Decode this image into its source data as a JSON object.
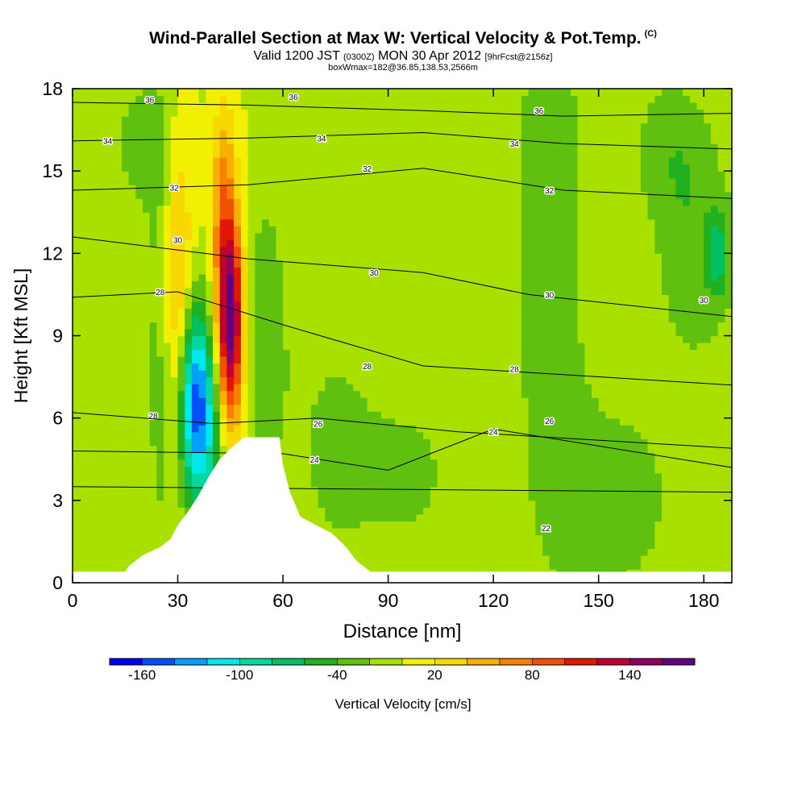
{
  "title": {
    "main": "Wind-Parallel Section at Max W: Vertical Velocity & Pot.Temp.",
    "mark": "(C)",
    "sub_valid": "Valid 1200 JST",
    "sub_utc": "(0300Z)",
    "sub_date": "MON 30 Apr 2012",
    "sub_fcst": "[9hrFcst@2156z]",
    "note": "boxWmax=182@36.85,138.53,2566m"
  },
  "chart_data": {
    "type": "heatmap",
    "xlabel": "Distance [nm]",
    "ylabel": "Height [Kft MSL]",
    "xlim": [
      0,
      188
    ],
    "ylim": [
      0,
      18
    ],
    "x_ticks": [
      0,
      30,
      60,
      90,
      120,
      150,
      180
    ],
    "y_ticks": [
      0,
      3,
      6,
      9,
      12,
      15,
      18
    ],
    "colorbar": {
      "title": "Vertical Velocity [cm/s]",
      "levels": [
        -180,
        -160,
        -140,
        -120,
        -100,
        -80,
        -60,
        -40,
        -20,
        0,
        20,
        40,
        60,
        80,
        100,
        120,
        140,
        160,
        180
      ],
      "tick_labels": [
        -160,
        -100,
        -40,
        20,
        80,
        140
      ],
      "colors": [
        "#0000f0",
        "#0050ff",
        "#00a0ff",
        "#00e8e8",
        "#00d8a0",
        "#00c060",
        "#20b020",
        "#60c010",
        "#a8e000",
        "#f0f000",
        "#f8d800",
        "#f8b000",
        "#f88000",
        "#f05000",
        "#e01800",
        "#c00030",
        "#900060",
        "#600080"
      ]
    },
    "background_level": 0,
    "velocity_features": [
      {
        "x": 35,
        "y": 6.5,
        "sx": 3.2,
        "sy": 2.6,
        "value": -150
      },
      {
        "x": 45,
        "y": 9.5,
        "sx": 2.6,
        "sy": 2.6,
        "value": 175
      },
      {
        "x": 30,
        "y": 11,
        "sx": 3,
        "sy": 4,
        "value": 55
      },
      {
        "x": 43,
        "y": 14,
        "sx": 2.5,
        "sy": 2.5,
        "value": 60
      },
      {
        "x": 40,
        "y": 5,
        "sx": 2.5,
        "sy": 2.5,
        "value": -50
      },
      {
        "x": 55,
        "y": 9,
        "sx": 5,
        "sy": 4,
        "value": -35
      },
      {
        "x": 25,
        "y": 8,
        "sx": 3,
        "sy": 6,
        "value": -30
      },
      {
        "x": 136,
        "y": 13,
        "sx": 8,
        "sy": 8,
        "value": -35
      },
      {
        "x": 178,
        "y": 12,
        "sx": 9,
        "sy": 3,
        "value": -35
      },
      {
        "x": 184,
        "y": 12,
        "sx": 2,
        "sy": 1,
        "value": -55
      },
      {
        "x": 155,
        "y": 3,
        "sx": 14,
        "sy": 3,
        "value": -30
      },
      {
        "x": 95,
        "y": 4,
        "sx": 10,
        "sy": 2,
        "value": -28
      },
      {
        "x": 75,
        "y": 5,
        "sx": 8,
        "sy": 3,
        "value": -28
      },
      {
        "x": 20,
        "y": 16,
        "sx": 8,
        "sy": 2,
        "value": -28
      },
      {
        "x": 170,
        "y": 16,
        "sx": 8,
        "sy": 2,
        "value": -28
      }
    ],
    "terrain": [
      [
        0,
        0.4
      ],
      [
        15,
        0.4
      ],
      [
        16,
        0.6
      ],
      [
        18,
        0.8
      ],
      [
        20,
        1.0
      ],
      [
        25,
        1.3
      ],
      [
        28,
        1.6
      ],
      [
        30,
        2.1
      ],
      [
        33,
        2.6
      ],
      [
        36,
        3.2
      ],
      [
        39,
        3.9
      ],
      [
        42,
        4.5
      ],
      [
        46,
        5.0
      ],
      [
        49,
        5.3
      ],
      [
        59,
        5.3
      ],
      [
        60,
        4.3
      ],
      [
        62,
        3.3
      ],
      [
        65,
        2.4
      ],
      [
        68,
        2.2
      ],
      [
        74,
        1.8
      ],
      [
        78,
        1.3
      ],
      [
        81,
        0.8
      ],
      [
        85,
        0.4
      ],
      [
        90,
        0.4
      ],
      [
        188,
        0.4
      ]
    ],
    "potential_temperature_contours": [
      {
        "label": "36",
        "points": [
          [
            0,
            17.5
          ],
          [
            50,
            17.4
          ],
          [
            100,
            17.2
          ],
          [
            140,
            17.0
          ],
          [
            188,
            17.1
          ]
        ],
        "label_at": [
          [
            22,
            17.6
          ],
          [
            63,
            17.7
          ],
          [
            133,
            17.2
          ]
        ]
      },
      {
        "label": "34",
        "points": [
          [
            0,
            16.1
          ],
          [
            50,
            16.2
          ],
          [
            100,
            16.4
          ],
          [
            140,
            16.0
          ],
          [
            188,
            15.8
          ]
        ],
        "label_at": [
          [
            10,
            16.1
          ],
          [
            71,
            16.2
          ],
          [
            126,
            16.0
          ]
        ]
      },
      {
        "label": "32",
        "points": [
          [
            0,
            14.3
          ],
          [
            50,
            14.5
          ],
          [
            100,
            15.1
          ],
          [
            140,
            14.3
          ],
          [
            188,
            14.0
          ]
        ],
        "label_at": [
          [
            29,
            14.4
          ],
          [
            84,
            15.1
          ],
          [
            136,
            14.3
          ]
        ]
      },
      {
        "label": "30",
        "points": [
          [
            0,
            12.6
          ],
          [
            50,
            11.8
          ],
          [
            100,
            11.3
          ],
          [
            130,
            10.5
          ],
          [
            188,
            9.7
          ]
        ],
        "label_at": [
          [
            30,
            12.5
          ],
          [
            86,
            11.3
          ],
          [
            136,
            10.5
          ],
          [
            180,
            10.3
          ]
        ]
      },
      {
        "label": "28",
        "points": [
          [
            0,
            10.4
          ],
          [
            30,
            10.6
          ],
          [
            60,
            9.4
          ],
          [
            100,
            7.9
          ],
          [
            188,
            7.2
          ]
        ],
        "label_at": [
          [
            25,
            10.6
          ],
          [
            84,
            7.9
          ],
          [
            126,
            7.8
          ],
          [
            23,
            6.1
          ]
        ]
      },
      {
        "label": "26",
        "points": [
          [
            0,
            6.2
          ],
          [
            40,
            5.8
          ],
          [
            70,
            6.0
          ],
          [
            110,
            5.5
          ],
          [
            188,
            4.9
          ]
        ],
        "label_at": [
          [
            70,
            5.8
          ],
          [
            136,
            5.9
          ]
        ]
      },
      {
        "label": "24",
        "points": [
          [
            0,
            4.8
          ],
          [
            60,
            4.7
          ],
          [
            90,
            4.1
          ],
          [
            120,
            5.6
          ],
          [
            188,
            4.2
          ]
        ],
        "label_at": [
          [
            69,
            4.5
          ],
          [
            120,
            5.5
          ]
        ]
      },
      {
        "label": "22",
        "points": [
          [
            0,
            3.5
          ],
          [
            188,
            3.3
          ]
        ],
        "label_at": [
          [
            135,
            2.0
          ]
        ]
      }
    ]
  }
}
